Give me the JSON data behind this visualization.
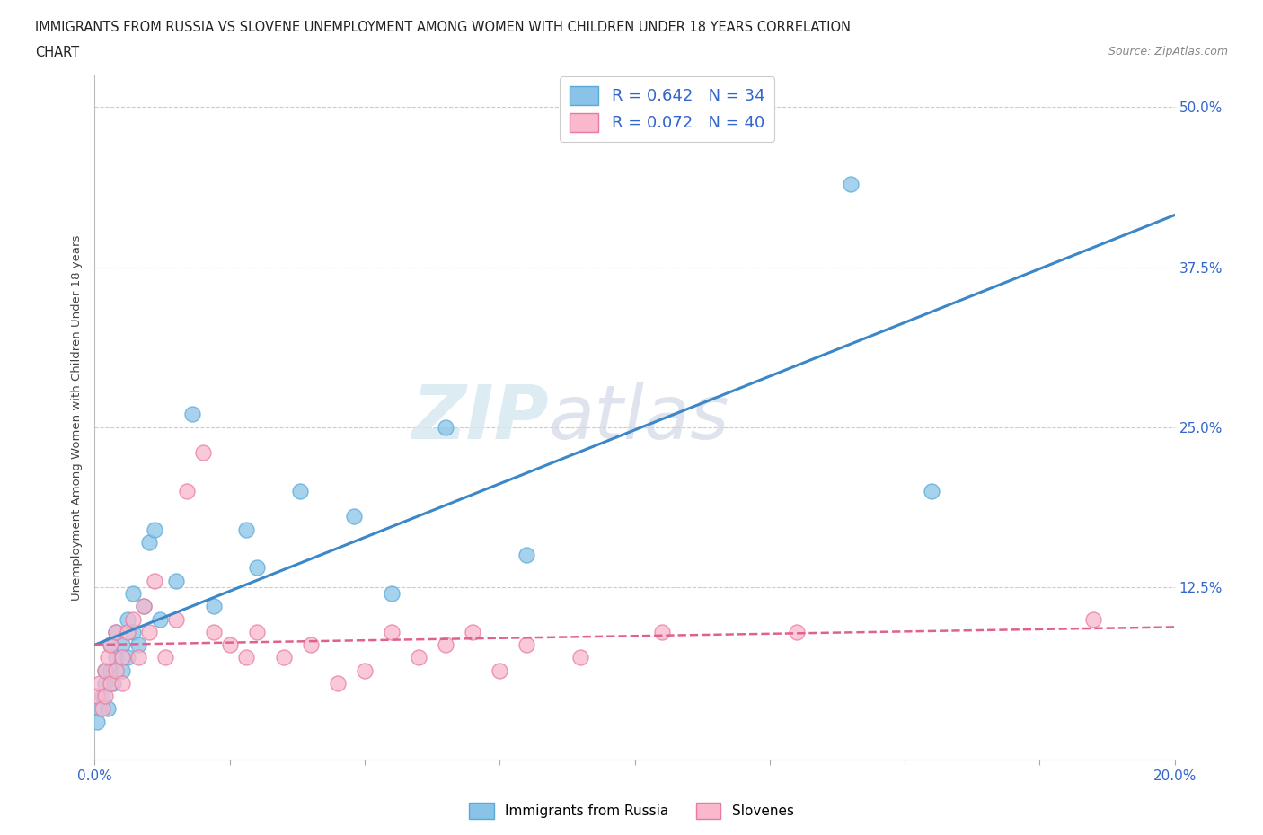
{
  "title_line1": "IMMIGRANTS FROM RUSSIA VS SLOVENE UNEMPLOYMENT AMONG WOMEN WITH CHILDREN UNDER 18 YEARS CORRELATION",
  "title_line2": "CHART",
  "source_text": "Source: ZipAtlas.com",
  "ylabel": "Unemployment Among Women with Children Under 18 years",
  "xlim": [
    0.0,
    0.2
  ],
  "ylim": [
    -0.01,
    0.525
  ],
  "xticks": [
    0.0,
    0.025,
    0.05,
    0.075,
    0.1,
    0.125,
    0.15,
    0.175,
    0.2
  ],
  "xtick_labels": [
    "0.0%",
    "",
    "",
    "",
    "",
    "",
    "",
    "",
    "20.0%"
  ],
  "ytick_positions": [
    0.0,
    0.125,
    0.25,
    0.375,
    0.5
  ],
  "ytick_labels": [
    "",
    "12.5%",
    "25.0%",
    "37.5%",
    "50.0%"
  ],
  "R_russia": 0.642,
  "N_russia": 34,
  "R_slovene": 0.072,
  "N_slovene": 40,
  "color_russia": "#89c4e8",
  "color_slovene": "#f9b8cc",
  "color_russia_edge": "#5aaad8",
  "color_slovene_edge": "#e87aa0",
  "color_russia_line": "#3b87c8",
  "color_slovene_line": "#e06090",
  "watermark_zip": "ZIP",
  "watermark_atlas": "atlas",
  "russia_x": [
    0.0005,
    0.001,
    0.0015,
    0.002,
    0.002,
    0.0025,
    0.003,
    0.003,
    0.0035,
    0.004,
    0.004,
    0.005,
    0.005,
    0.006,
    0.006,
    0.007,
    0.007,
    0.008,
    0.009,
    0.01,
    0.011,
    0.012,
    0.015,
    0.018,
    0.022,
    0.028,
    0.03,
    0.038,
    0.048,
    0.055,
    0.065,
    0.08,
    0.14,
    0.155
  ],
  "russia_y": [
    0.02,
    0.03,
    0.04,
    0.05,
    0.06,
    0.03,
    0.06,
    0.08,
    0.05,
    0.07,
    0.09,
    0.08,
    0.06,
    0.1,
    0.07,
    0.09,
    0.12,
    0.08,
    0.11,
    0.16,
    0.17,
    0.1,
    0.13,
    0.26,
    0.11,
    0.17,
    0.14,
    0.2,
    0.18,
    0.12,
    0.25,
    0.15,
    0.44,
    0.2
  ],
  "slovene_x": [
    0.0005,
    0.001,
    0.0015,
    0.002,
    0.002,
    0.0025,
    0.003,
    0.003,
    0.004,
    0.004,
    0.005,
    0.005,
    0.006,
    0.007,
    0.008,
    0.009,
    0.01,
    0.011,
    0.013,
    0.015,
    0.017,
    0.02,
    0.022,
    0.025,
    0.028,
    0.03,
    0.035,
    0.04,
    0.045,
    0.05,
    0.055,
    0.06,
    0.065,
    0.07,
    0.075,
    0.08,
    0.09,
    0.105,
    0.13,
    0.185
  ],
  "slovene_y": [
    0.04,
    0.05,
    0.03,
    0.06,
    0.04,
    0.07,
    0.05,
    0.08,
    0.06,
    0.09,
    0.07,
    0.05,
    0.09,
    0.1,
    0.07,
    0.11,
    0.09,
    0.13,
    0.07,
    0.1,
    0.2,
    0.23,
    0.09,
    0.08,
    0.07,
    0.09,
    0.07,
    0.08,
    0.05,
    0.06,
    0.09,
    0.07,
    0.08,
    0.09,
    0.06,
    0.08,
    0.07,
    0.09,
    0.09,
    0.1
  ]
}
